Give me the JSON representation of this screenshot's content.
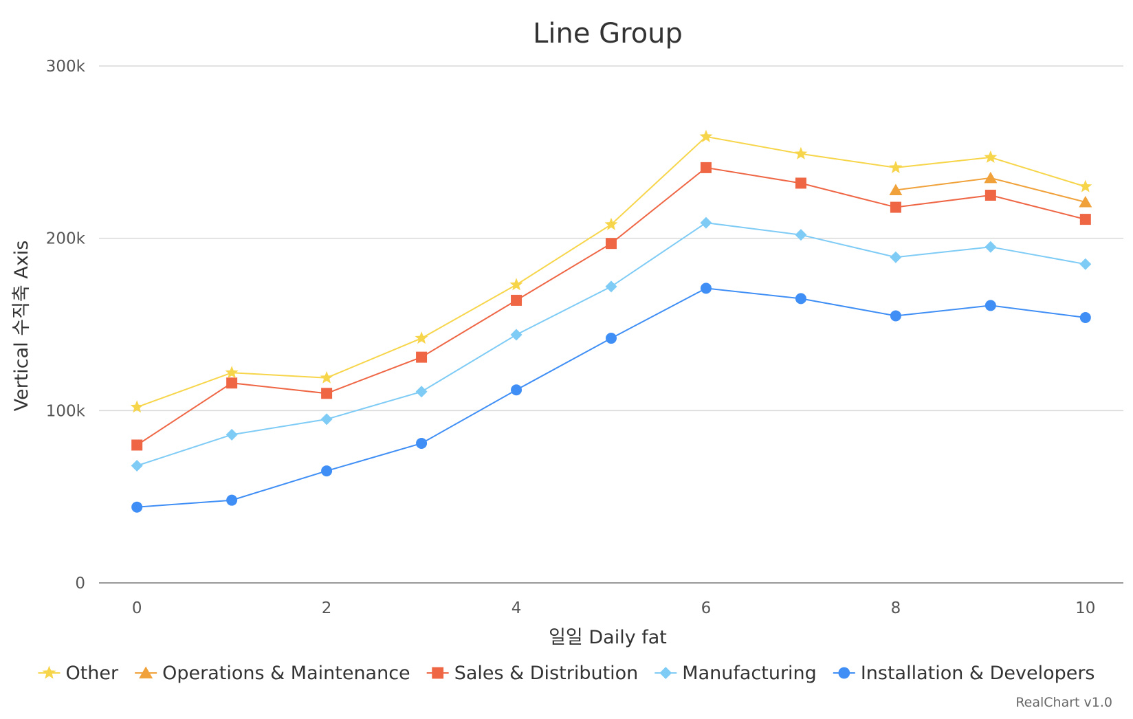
{
  "chart_data": {
    "type": "line",
    "title": "Line Group",
    "xlabel": "일일 Daily fat",
    "ylabel": "Vertical 수직축 Axis",
    "x": [
      0,
      1,
      2,
      3,
      4,
      5,
      6,
      7,
      8,
      9,
      10
    ],
    "xticks": [
      "0",
      "2",
      "4",
      "6",
      "8",
      "10"
    ],
    "xtick_values": [
      0,
      2,
      4,
      6,
      8,
      10
    ],
    "xlim": [
      -0.4,
      10.4
    ],
    "ylim": [
      0,
      300000
    ],
    "yticks": [
      "0",
      "100k",
      "200k",
      "300k"
    ],
    "ytick_values": [
      0,
      100000,
      200000,
      300000
    ],
    "grid": true,
    "legend_position": "bottom",
    "series": [
      {
        "name": "Other",
        "marker": "star",
        "color": "#f7d54a",
        "values": [
          102000,
          122000,
          119000,
          142000,
          173000,
          208000,
          259000,
          249000,
          241000,
          247000,
          230000
        ]
      },
      {
        "name": "Operations & Maintenance",
        "marker": "triangle",
        "color": "#f0a13a",
        "values": [
          null,
          null,
          null,
          null,
          null,
          null,
          null,
          null,
          228000,
          235000,
          221000
        ]
      },
      {
        "name": "Sales & Distribution",
        "marker": "square",
        "color": "#ef6645",
        "values": [
          80000,
          116000,
          110000,
          131000,
          164000,
          197000,
          241000,
          232000,
          218000,
          225000,
          211000
        ]
      },
      {
        "name": "Manufacturing",
        "marker": "diamond",
        "color": "#7ecbf6",
        "values": [
          68000,
          86000,
          95000,
          111000,
          144000,
          172000,
          209000,
          202000,
          189000,
          195000,
          185000
        ]
      },
      {
        "name": "Installation & Developers",
        "marker": "circle",
        "color": "#3f8ef5",
        "values": [
          44000,
          48000,
          65000,
          81000,
          112000,
          142000,
          171000,
          165000,
          155000,
          161000,
          154000
        ]
      }
    ]
  },
  "credit": "RealChart v1.0"
}
